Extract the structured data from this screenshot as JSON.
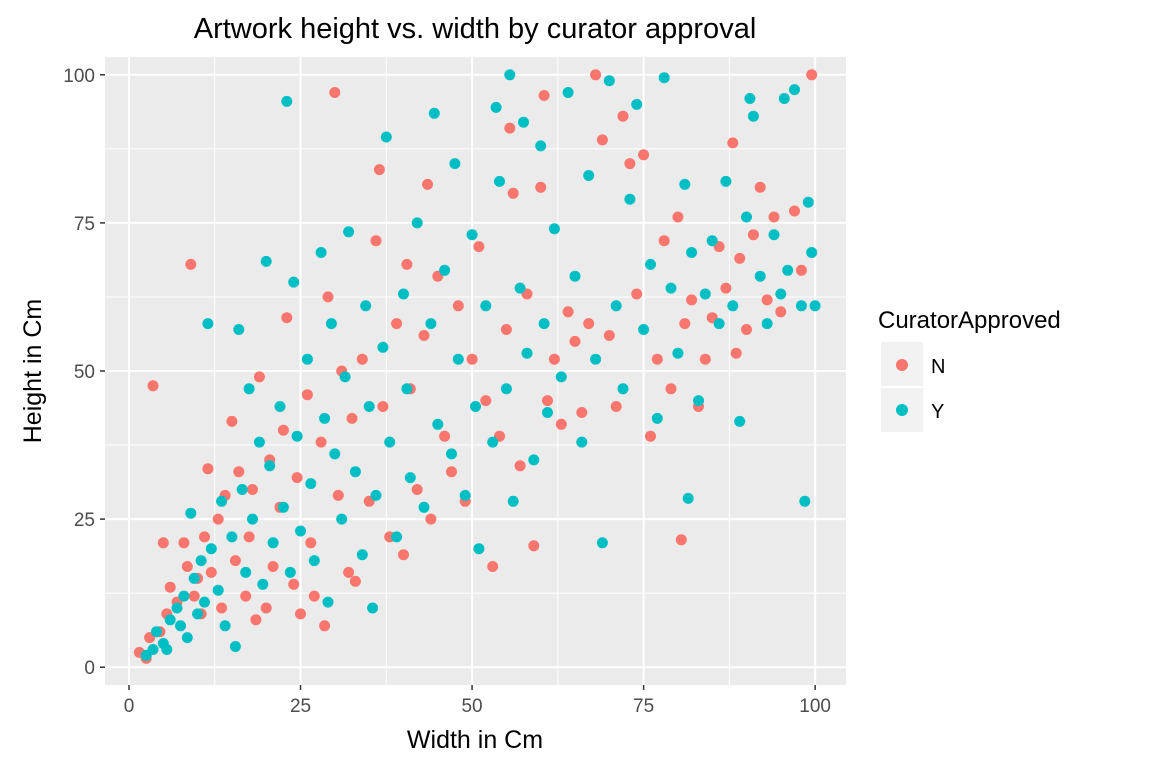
{
  "chart_data": {
    "type": "scatter",
    "title": "Artwork height vs. width by curator approval",
    "xlabel": "Width in Cm",
    "ylabel": "Height in Cm",
    "xlim": [
      -3.5,
      104.5
    ],
    "ylim": [
      -3,
      103
    ],
    "xticks": [
      0,
      25,
      50,
      75,
      100
    ],
    "yticks": [
      0,
      25,
      50,
      75,
      100
    ],
    "xtick_labels": [
      "0",
      "25",
      "50",
      "75",
      "100"
    ],
    "ytick_labels": [
      "0",
      "25",
      "50",
      "75",
      "100"
    ],
    "grid": true,
    "legend": {
      "title": "CuratorApproved",
      "placement": "right"
    },
    "series": [
      {
        "name": "N",
        "color": "#F8766D",
        "points": [
          [
            1.5,
            2.5
          ],
          [
            2.5,
            1.5
          ],
          [
            3,
            5
          ],
          [
            3.5,
            47.5
          ],
          [
            4.5,
            6
          ],
          [
            5,
            21
          ],
          [
            5.5,
            9
          ],
          [
            6,
            13.5
          ],
          [
            7,
            11
          ],
          [
            8,
            21
          ],
          [
            8.5,
            17
          ],
          [
            9,
            68
          ],
          [
            9.5,
            12
          ],
          [
            10,
            15
          ],
          [
            10.5,
            9
          ],
          [
            11,
            22
          ],
          [
            11.5,
            33.5
          ],
          [
            12,
            16
          ],
          [
            13,
            25
          ],
          [
            13.5,
            10
          ],
          [
            14,
            29
          ],
          [
            15,
            41.5
          ],
          [
            15.5,
            18
          ],
          [
            16,
            33
          ],
          [
            17,
            12
          ],
          [
            17.5,
            22
          ],
          [
            18,
            30
          ],
          [
            18.5,
            8
          ],
          [
            19,
            49
          ],
          [
            20,
            10
          ],
          [
            20.5,
            35
          ],
          [
            21,
            17
          ],
          [
            22,
            27
          ],
          [
            22.5,
            40
          ],
          [
            23,
            59
          ],
          [
            24,
            14
          ],
          [
            24.5,
            32
          ],
          [
            25,
            9
          ],
          [
            26,
            46
          ],
          [
            26.5,
            21
          ],
          [
            27,
            12
          ],
          [
            28,
            38
          ],
          [
            28.5,
            7
          ],
          [
            29,
            62.5
          ],
          [
            30,
            97
          ],
          [
            30.5,
            29
          ],
          [
            31,
            50
          ],
          [
            32,
            16
          ],
          [
            32.5,
            42
          ],
          [
            33,
            14.5
          ],
          [
            34,
            52
          ],
          [
            35,
            28
          ],
          [
            36,
            72
          ],
          [
            36.5,
            84
          ],
          [
            37,
            44
          ],
          [
            38,
            22
          ],
          [
            39,
            58
          ],
          [
            40,
            19
          ],
          [
            40.5,
            68
          ],
          [
            41,
            47
          ],
          [
            42,
            30
          ],
          [
            43,
            56
          ],
          [
            43.5,
            81.5
          ],
          [
            44,
            25
          ],
          [
            45,
            66
          ],
          [
            46,
            39
          ],
          [
            47,
            33
          ],
          [
            48,
            61
          ],
          [
            49,
            28
          ],
          [
            50,
            52
          ],
          [
            51,
            71
          ],
          [
            52,
            45
          ],
          [
            53,
            17
          ],
          [
            54,
            39
          ],
          [
            55,
            57
          ],
          [
            55.5,
            91
          ],
          [
            56,
            80
          ],
          [
            57,
            34
          ],
          [
            58,
            63
          ],
          [
            59,
            20.5
          ],
          [
            60,
            81
          ],
          [
            60.5,
            96.5
          ],
          [
            61,
            45
          ],
          [
            62,
            52
          ],
          [
            63,
            41
          ],
          [
            64,
            60
          ],
          [
            65,
            55
          ],
          [
            66,
            43
          ],
          [
            67,
            58
          ],
          [
            68,
            100
          ],
          [
            69,
            89
          ],
          [
            70,
            56
          ],
          [
            71,
            44
          ],
          [
            72,
            93
          ],
          [
            73,
            85
          ],
          [
            74,
            63
          ],
          [
            75,
            86.5
          ],
          [
            76,
            39
          ],
          [
            77,
            52
          ],
          [
            78,
            72
          ],
          [
            79,
            47
          ],
          [
            80,
            76
          ],
          [
            80.5,
            21.5
          ],
          [
            81,
            58
          ],
          [
            82,
            62
          ],
          [
            83,
            44
          ],
          [
            84,
            52
          ],
          [
            85,
            59
          ],
          [
            86,
            71
          ],
          [
            87,
            64
          ],
          [
            88,
            88.5
          ],
          [
            88.5,
            53
          ],
          [
            89,
            69
          ],
          [
            90,
            57
          ],
          [
            91,
            73
          ],
          [
            92,
            81
          ],
          [
            93,
            62
          ],
          [
            94,
            76
          ],
          [
            95,
            60
          ],
          [
            97,
            77
          ],
          [
            98,
            67
          ],
          [
            99.5,
            100
          ]
        ]
      },
      {
        "name": "Y",
        "color": "#00BFC4",
        "points": [
          [
            2.5,
            2
          ],
          [
            3.5,
            3
          ],
          [
            4,
            6
          ],
          [
            5,
            4
          ],
          [
            5.5,
            3
          ],
          [
            6,
            8
          ],
          [
            7,
            10
          ],
          [
            7.5,
            7
          ],
          [
            8,
            12
          ],
          [
            8.5,
            5
          ],
          [
            9,
            26
          ],
          [
            9.5,
            15
          ],
          [
            10,
            9
          ],
          [
            10.5,
            18
          ],
          [
            11,
            11
          ],
          [
            11.5,
            58
          ],
          [
            12,
            20
          ],
          [
            13,
            13
          ],
          [
            13.5,
            28
          ],
          [
            14,
            7
          ],
          [
            15,
            22
          ],
          [
            15.5,
            3.5
          ],
          [
            16,
            57
          ],
          [
            16.5,
            30
          ],
          [
            17,
            16
          ],
          [
            17.5,
            47
          ],
          [
            18,
            25
          ],
          [
            19,
            38
          ],
          [
            19.5,
            14
          ],
          [
            20,
            68.5
          ],
          [
            20.5,
            34
          ],
          [
            21,
            21
          ],
          [
            22,
            44
          ],
          [
            22.5,
            27
          ],
          [
            23,
            95.5
          ],
          [
            23.5,
            16
          ],
          [
            24,
            65
          ],
          [
            24.5,
            39
          ],
          [
            25,
            23
          ],
          [
            26,
            52
          ],
          [
            26.5,
            31
          ],
          [
            27,
            18
          ],
          [
            28,
            70
          ],
          [
            28.5,
            42
          ],
          [
            29,
            11
          ],
          [
            29.5,
            58
          ],
          [
            30,
            36
          ],
          [
            31,
            25
          ],
          [
            31.5,
            49
          ],
          [
            32,
            73.5
          ],
          [
            33,
            33
          ],
          [
            34,
            19
          ],
          [
            34.5,
            61
          ],
          [
            35,
            44
          ],
          [
            35.5,
            10
          ],
          [
            36,
            29
          ],
          [
            37,
            54
          ],
          [
            37.5,
            89.5
          ],
          [
            38,
            38
          ],
          [
            39,
            22
          ],
          [
            40,
            63
          ],
          [
            40.5,
            47
          ],
          [
            41,
            32
          ],
          [
            42,
            75
          ],
          [
            43,
            27
          ],
          [
            44,
            58
          ],
          [
            44.5,
            93.5
          ],
          [
            45,
            41
          ],
          [
            46,
            67
          ],
          [
            47,
            36
          ],
          [
            47.5,
            85
          ],
          [
            48,
            52
          ],
          [
            49,
            29
          ],
          [
            50,
            73
          ],
          [
            50.5,
            44
          ],
          [
            51,
            20
          ],
          [
            52,
            61
          ],
          [
            53,
            38
          ],
          [
            53.5,
            94.5
          ],
          [
            54,
            82
          ],
          [
            55,
            47
          ],
          [
            55.5,
            100
          ],
          [
            56,
            28
          ],
          [
            57,
            64
          ],
          [
            57.5,
            92
          ],
          [
            58,
            53
          ],
          [
            59,
            35
          ],
          [
            60,
            88
          ],
          [
            60.5,
            58
          ],
          [
            61,
            43
          ],
          [
            62,
            74
          ],
          [
            63,
            49
          ],
          [
            64,
            97
          ],
          [
            65,
            66
          ],
          [
            66,
            38
          ],
          [
            67,
            83
          ],
          [
            68,
            52
          ],
          [
            69,
            21
          ],
          [
            70,
            99
          ],
          [
            71,
            61
          ],
          [
            72,
            47
          ],
          [
            73,
            79
          ],
          [
            74,
            95
          ],
          [
            75,
            57
          ],
          [
            76,
            68
          ],
          [
            77,
            42
          ],
          [
            78,
            99.5
          ],
          [
            79,
            64
          ],
          [
            80,
            53
          ],
          [
            81,
            81.5
          ],
          [
            81.5,
            28.5
          ],
          [
            82,
            70
          ],
          [
            83,
            45
          ],
          [
            84,
            63
          ],
          [
            85,
            72
          ],
          [
            86,
            58
          ],
          [
            87,
            82
          ],
          [
            88,
            61
          ],
          [
            89,
            41.5
          ],
          [
            90,
            76
          ],
          [
            90.5,
            96
          ],
          [
            91,
            93
          ],
          [
            92,
            66
          ],
          [
            93,
            58
          ],
          [
            94,
            73
          ],
          [
            95,
            63
          ],
          [
            95.5,
            96
          ],
          [
            96,
            67
          ],
          [
            97,
            97.5
          ],
          [
            98,
            61
          ],
          [
            98.5,
            28
          ],
          [
            99,
            78.5
          ],
          [
            99.5,
            70
          ],
          [
            100,
            61
          ]
        ]
      }
    ]
  }
}
